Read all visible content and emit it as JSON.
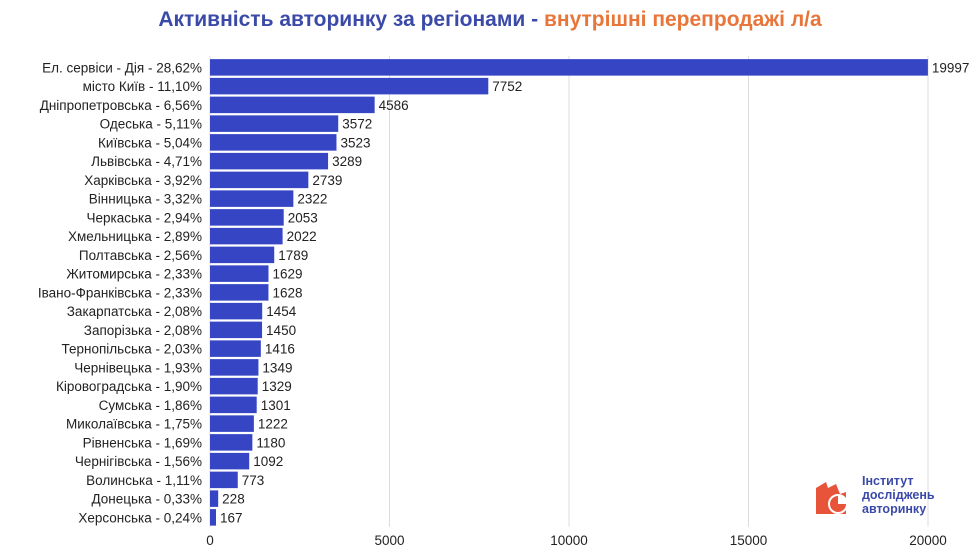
{
  "title": {
    "part1": "Активність авторинку за регіонами - ",
    "part2": "внутрішні перепродажі л/а"
  },
  "colors": {
    "bar": "#3545c4",
    "title_main": "#3b4aa8",
    "title_accent": "#e8763a",
    "grid": "#dcdcdc",
    "logo_orange": "#e8543a"
  },
  "chart_data": {
    "type": "bar",
    "orientation": "horizontal",
    "title": "Активність авторинку за регіонами - внутрішні перепродажі л/а",
    "categories": [
      "Ел. сервіси - Дія - 28,62%",
      "місто Київ - 11,10%",
      "Дніпропетровська - 6,56%",
      "Одеська - 5,11%",
      "Київська - 5,04%",
      "Львівська - 4,71%",
      "Харківська - 3,92%",
      "Вінницька - 3,32%",
      "Черкаська - 2,94%",
      "Хмельницька - 2,89%",
      "Полтавська - 2,56%",
      "Житомирська - 2,33%",
      "Івано-Франківська - 2,33%",
      "Закарпатська - 2,08%",
      "Запорізька - 2,08%",
      "Тернопільська - 2,03%",
      "Чернівецька - 1,93%",
      "Кіровоградська - 1,90%",
      "Сумська - 1,86%",
      "Миколаївська - 1,75%",
      "Рівненська - 1,69%",
      "Чернігівська - 1,56%",
      "Волинська - 1,11%",
      "Донецька - 0,33%",
      "Херсонська - 0,24%"
    ],
    "values": [
      19997,
      7752,
      4586,
      3572,
      3523,
      3289,
      2739,
      2322,
      2053,
      2022,
      1789,
      1629,
      1628,
      1454,
      1450,
      1416,
      1349,
      1329,
      1301,
      1222,
      1180,
      1092,
      773,
      228,
      167
    ],
    "xticks": [
      0,
      5000,
      10000,
      15000,
      20000
    ],
    "xlim": [
      0,
      20000
    ],
    "grid": "vertical",
    "legend": "none"
  },
  "logo": {
    "line1": "Інститут",
    "line2": "досліджень",
    "line3": "авторинку"
  }
}
